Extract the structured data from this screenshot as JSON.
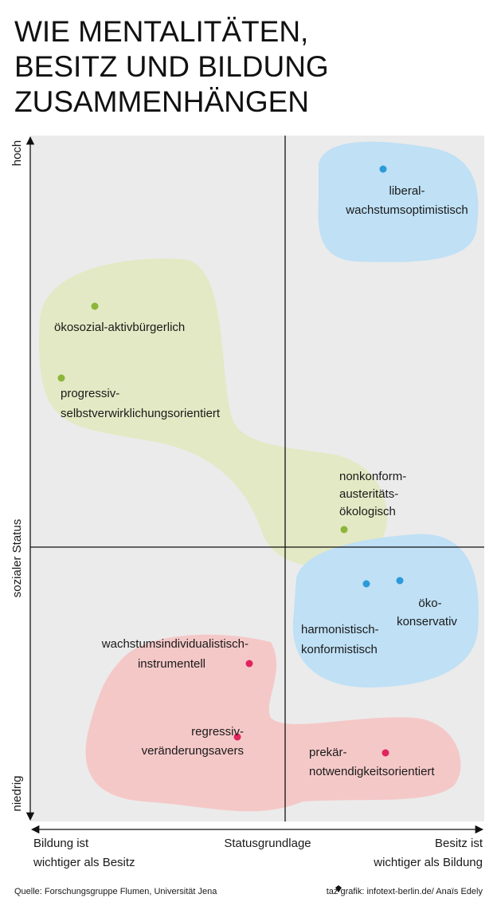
{
  "title_lines": [
    "WIE MENTALITÄTEN,",
    "BESITZ UND BILDUNG",
    "ZUSAMMENHÄNGEN"
  ],
  "axes": {
    "y_top": "hoch",
    "y_label": "sozialer Status",
    "y_bottom": "niedrig",
    "x_left": [
      "Bildung ist",
      "wichtiger als Besitz"
    ],
    "x_center": "Statusgrundlage",
    "x_right": [
      "Besitz ist",
      "wichtiger als Bildung"
    ]
  },
  "groups": [
    {
      "label": [
        "liberal-",
        "wachstumsoptimistisch"
      ]
    },
    {
      "label": [
        "ökosozial-aktivbürgerlich"
      ]
    },
    {
      "label": [
        "progressiv-",
        "selbstverwirklichungsorientiert"
      ]
    },
    {
      "label": [
        "nonkonform-",
        "austeritäts-",
        "ökologisch"
      ]
    },
    {
      "label": [
        "harmonistisch-",
        "konformistisch"
      ]
    },
    {
      "label": [
        "öko-",
        "konservativ"
      ]
    },
    {
      "label": [
        "wachstumsindividualistisch-",
        "instrumentell"
      ]
    },
    {
      "label": [
        "regressiv-",
        "veränderungsavers"
      ]
    },
    {
      "label": [
        "prekär-",
        "notwendigkeitsorientiert"
      ]
    }
  ],
  "footer": {
    "source": "Quelle: Forschungsgruppe Flumen, Universität Jena",
    "credit": "taz grafik: infotext-berlin.de/ Anaïs Edely"
  }
}
